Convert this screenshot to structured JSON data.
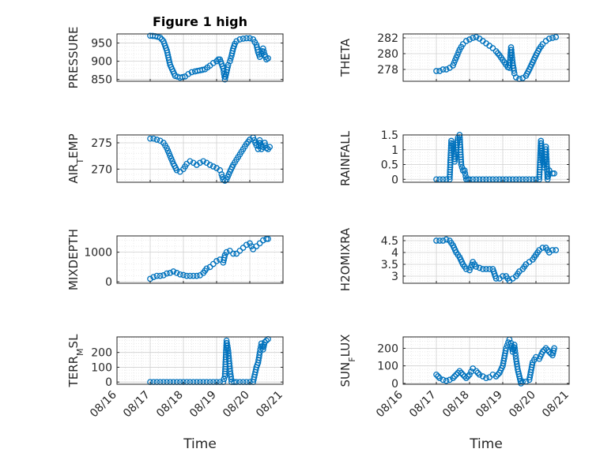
{
  "figure": {
    "title": "Figure 1 high"
  },
  "colors": {
    "marker": "#0072BD",
    "axis": "#262626",
    "grid": "#d0d0d0",
    "minor_grid": "#e6e6e6"
  },
  "chart_data": [
    {
      "type": "scatter",
      "xlabel": "",
      "ylabel": "PRESSURE",
      "ylim": [
        845,
        975
      ],
      "yticks": [
        850,
        900,
        950
      ],
      "ytick_labels": [
        "850",
        "900",
        "950"
      ],
      "grid": true,
      "minor_grid": true,
      "series": [
        {
          "x": [
            17.0,
            17.15,
            17.3,
            17.4,
            17.5,
            17.6,
            17.75,
            17.9,
            18.05,
            18.15,
            18.25,
            18.35,
            18.5,
            18.65,
            18.8,
            18.9,
            19.0,
            19.05,
            19.1,
            19.2,
            19.25,
            19.3,
            19.35,
            19.4,
            19.45,
            19.5,
            19.55,
            19.6,
            19.7,
            19.8,
            19.9,
            20.0,
            20.1,
            20.2,
            20.25,
            20.3,
            20.35,
            20.4,
            20.45,
            20.5,
            20.55
          ],
          "y": [
            970,
            969,
            965,
            955,
            930,
            890,
            860,
            855,
            858,
            865,
            870,
            872,
            875,
            878,
            888,
            895,
            900,
            905,
            905,
            880,
            850,
            870,
            890,
            900,
            915,
            935,
            948,
            955,
            960,
            962,
            963,
            963,
            960,
            945,
            925,
            912,
            920,
            935,
            918,
            905,
            908
          ]
        }
      ]
    },
    {
      "type": "scatter",
      "xlabel": "",
      "ylabel": "THETA",
      "ylim": [
        276.5,
        282.5
      ],
      "yticks": [
        278,
        280,
        282
      ],
      "ytick_labels": [
        "278",
        "280",
        "282"
      ],
      "grid": true,
      "minor_grid": true,
      "series": [
        {
          "x": [
            17.0,
            17.1,
            17.2,
            17.3,
            17.4,
            17.5,
            17.6,
            17.7,
            17.8,
            17.9,
            18.0,
            18.1,
            18.2,
            18.3,
            18.4,
            18.5,
            18.6,
            18.7,
            18.8,
            18.9,
            19.0,
            19.1,
            19.15,
            19.2,
            19.25,
            19.3,
            19.35,
            19.4,
            19.5,
            19.6,
            19.7,
            19.8,
            19.9,
            20.0,
            20.1,
            20.2,
            20.3,
            20.4,
            20.5,
            20.6
          ],
          "y": [
            277.8,
            277.8,
            278.0,
            278.0,
            278.2,
            278.5,
            279.5,
            280.5,
            281.2,
            281.6,
            281.8,
            282.0,
            282.1,
            281.9,
            281.6,
            281.3,
            281.0,
            280.7,
            280.3,
            279.8,
            279.2,
            278.6,
            278.3,
            278.2,
            280.8,
            278.8,
            277.5,
            277.0,
            276.8,
            276.9,
            277.2,
            278.0,
            278.9,
            279.8,
            280.6,
            281.2,
            281.6,
            281.9,
            282.0,
            282.1
          ]
        }
      ]
    },
    {
      "type": "scatter",
      "xlabel": "",
      "ylabel": "AIR_TEMP",
      "ylim": [
        267.5,
        276.5
      ],
      "yticks": [
        270,
        275
      ],
      "ytick_labels": [
        "270",
        "275"
      ],
      "grid": true,
      "minor_grid": true,
      "series": [
        {
          "x": [
            17.0,
            17.1,
            17.2,
            17.3,
            17.4,
            17.5,
            17.6,
            17.7,
            17.8,
            17.9,
            18.0,
            18.1,
            18.2,
            18.3,
            18.4,
            18.5,
            18.6,
            18.7,
            18.8,
            18.9,
            19.0,
            19.1,
            19.15,
            19.2,
            19.25,
            19.3,
            19.4,
            19.5,
            19.6,
            19.7,
            19.8,
            19.9,
            20.0,
            20.1,
            20.2,
            20.25,
            20.3,
            20.35,
            20.4,
            20.45,
            20.5,
            20.55,
            20.6
          ],
          "y": [
            275.8,
            275.8,
            275.6,
            275.4,
            275.0,
            274.0,
            272.5,
            271.0,
            269.8,
            269.5,
            270.0,
            271.0,
            271.5,
            271.2,
            270.8,
            271.2,
            271.5,
            271.2,
            270.8,
            270.5,
            270.2,
            269.8,
            269.0,
            268.0,
            267.8,
            268.0,
            269.5,
            270.8,
            271.8,
            272.8,
            273.8,
            274.8,
            275.6,
            276.0,
            274.5,
            273.8,
            275.5,
            273.8,
            274.2,
            275.0,
            274.0,
            273.8,
            274.2
          ]
        }
      ]
    },
    {
      "type": "scatter",
      "xlabel": "",
      "ylabel": "RAINFALL",
      "ylim": [
        -0.1,
        1.5
      ],
      "yticks": [
        0,
        0.5,
        1,
        1.5
      ],
      "ytick_labels": [
        "0",
        "0.5",
        "1",
        "1.5"
      ],
      "grid": true,
      "minor_grid": true,
      "series": [
        {
          "x": [
            17.0,
            17.1,
            17.2,
            17.3,
            17.4,
            17.45,
            17.5,
            17.55,
            17.6,
            17.65,
            17.7,
            17.75,
            17.8,
            17.85,
            17.9,
            17.95,
            18.0,
            18.1,
            18.2,
            18.3,
            18.4,
            18.5,
            18.6,
            18.7,
            18.8,
            18.9,
            19.0,
            19.1,
            19.2,
            19.3,
            19.4,
            19.5,
            19.6,
            19.7,
            19.8,
            19.9,
            20.0,
            20.1,
            20.15,
            20.2,
            20.25,
            20.3,
            20.35,
            20.4,
            20.5,
            20.55
          ],
          "y": [
            0,
            0,
            0,
            0,
            0,
            1.3,
            1.2,
            0.6,
            1.0,
            1.4,
            1.5,
            0.5,
            0.3,
            0.3,
            0,
            0,
            0,
            0,
            0,
            0,
            0,
            0,
            0,
            0,
            0,
            0,
            0,
            0,
            0,
            0,
            0,
            0,
            0,
            0,
            0,
            0,
            0,
            0,
            1.3,
            0.6,
            0.4,
            1.1,
            0,
            0.3,
            0.2,
            0.2
          ]
        }
      ]
    },
    {
      "type": "scatter",
      "xlabel": "",
      "ylabel": "MIXDEPTH",
      "ylim": [
        -50,
        1550
      ],
      "yticks": [
        0,
        1000
      ],
      "ytick_labels": [
        "0",
        "1000"
      ],
      "grid": true,
      "minor_grid": true,
      "series": [
        {
          "x": [
            17.0,
            17.1,
            17.2,
            17.3,
            17.4,
            17.5,
            17.6,
            17.7,
            17.8,
            17.9,
            18.0,
            18.1,
            18.2,
            18.3,
            18.4,
            18.5,
            18.6,
            18.7,
            18.8,
            18.9,
            19.0,
            19.1,
            19.2,
            19.25,
            19.3,
            19.4,
            19.5,
            19.6,
            19.7,
            19.8,
            19.9,
            20.0,
            20.1,
            20.2,
            20.3,
            20.4,
            20.5,
            20.55
          ],
          "y": [
            100,
            160,
            200,
            200,
            220,
            280,
            300,
            350,
            300,
            250,
            230,
            200,
            200,
            200,
            200,
            220,
            300,
            450,
            500,
            600,
            700,
            750,
            650,
            900,
            1000,
            1050,
            950,
            950,
            1050,
            1150,
            1250,
            1300,
            1100,
            1200,
            1300,
            1400,
            1450,
            1450
          ]
        }
      ]
    },
    {
      "type": "scatter",
      "xlabel": "",
      "ylabel": "H2OMIXRA",
      "ylim": [
        2.7,
        4.7
      ],
      "yticks": [
        3,
        3.5,
        4,
        4.5
      ],
      "ytick_labels": [
        "3",
        "3.5",
        "4",
        "4.5"
      ],
      "grid": true,
      "minor_grid": true,
      "series": [
        {
          "x": [
            17.0,
            17.1,
            17.2,
            17.3,
            17.4,
            17.5,
            17.6,
            17.7,
            17.8,
            17.9,
            18.0,
            18.1,
            18.2,
            18.3,
            18.4,
            18.5,
            18.6,
            18.7,
            18.8,
            18.9,
            19.0,
            19.1,
            19.2,
            19.3,
            19.4,
            19.5,
            19.6,
            19.7,
            19.8,
            19.9,
            20.0,
            20.1,
            20.2,
            20.3,
            20.4,
            20.5,
            20.6
          ],
          "y": [
            4.5,
            4.5,
            4.5,
            4.55,
            4.5,
            4.3,
            4.0,
            3.8,
            3.5,
            3.3,
            3.25,
            3.6,
            3.4,
            3.35,
            3.3,
            3.3,
            3.3,
            3.3,
            2.9,
            2.9,
            3.0,
            3.0,
            2.8,
            2.9,
            3.0,
            3.2,
            3.3,
            3.5,
            3.6,
            3.7,
            3.9,
            4.1,
            4.2,
            4.2,
            4.0,
            4.1,
            4.1
          ]
        }
      ]
    },
    {
      "type": "scatter",
      "xlabel": "Time",
      "ylabel": "TERR_MSL",
      "ylim": [
        -15,
        305
      ],
      "yticks": [
        0,
        100,
        200
      ],
      "ytick_labels": [
        "0",
        "100",
        "200"
      ],
      "xticks": [
        16,
        17,
        18,
        19,
        20,
        21
      ],
      "xtick_labels": [
        "08/16",
        "08/17",
        "08/18",
        "08/19",
        "08/20",
        "08/21"
      ],
      "grid": true,
      "minor_grid": true,
      "series": [
        {
          "x": [
            17.0,
            17.2,
            17.4,
            17.6,
            17.8,
            18.0,
            18.2,
            18.4,
            18.6,
            18.8,
            19.0,
            19.2,
            19.25,
            19.3,
            19.35,
            19.4,
            19.45,
            19.6,
            19.8,
            20.0,
            20.1,
            20.2,
            20.25,
            20.3,
            20.35,
            20.4,
            20.45,
            20.5,
            20.55
          ],
          "y": [
            0,
            0,
            0,
            0,
            0,
            0,
            0,
            0,
            0,
            0,
            0,
            0,
            40,
            280,
            210,
            90,
            0,
            0,
            0,
            0,
            0,
            100,
            130,
            200,
            260,
            220,
            270,
            280,
            290
          ]
        }
      ]
    },
    {
      "type": "scatter",
      "xlabel": "Time",
      "ylabel": "SUN_FLUX",
      "ylim": [
        -5,
        265
      ],
      "yticks": [
        0,
        100,
        200
      ],
      "ytick_labels": [
        "0",
        "100",
        "200"
      ],
      "xticks": [
        16,
        17,
        18,
        19,
        20,
        21
      ],
      "xtick_labels": [
        "08/16",
        "08/17",
        "08/18",
        "08/19",
        "08/20",
        "08/21"
      ],
      "grid": true,
      "minor_grid": true,
      "series": [
        {
          "x": [
            17.0,
            17.1,
            17.2,
            17.3,
            17.4,
            17.5,
            17.6,
            17.7,
            17.8,
            17.9,
            18.0,
            18.1,
            18.2,
            18.3,
            18.4,
            18.5,
            18.6,
            18.7,
            18.8,
            18.9,
            19.0,
            19.1,
            19.2,
            19.25,
            19.3,
            19.35,
            19.4,
            19.45,
            19.5,
            19.55,
            19.6,
            19.7,
            19.8,
            19.9,
            20.0,
            20.1,
            20.2,
            20.3,
            20.4,
            20.5,
            20.55
          ],
          "y": [
            50,
            30,
            20,
            15,
            20,
            30,
            50,
            70,
            50,
            30,
            50,
            85,
            70,
            50,
            40,
            30,
            35,
            50,
            40,
            60,
            100,
            200,
            250,
            230,
            180,
            220,
            140,
            80,
            40,
            0,
            10,
            10,
            20,
            120,
            150,
            140,
            180,
            200,
            180,
            160,
            200
          ]
        }
      ]
    }
  ]
}
